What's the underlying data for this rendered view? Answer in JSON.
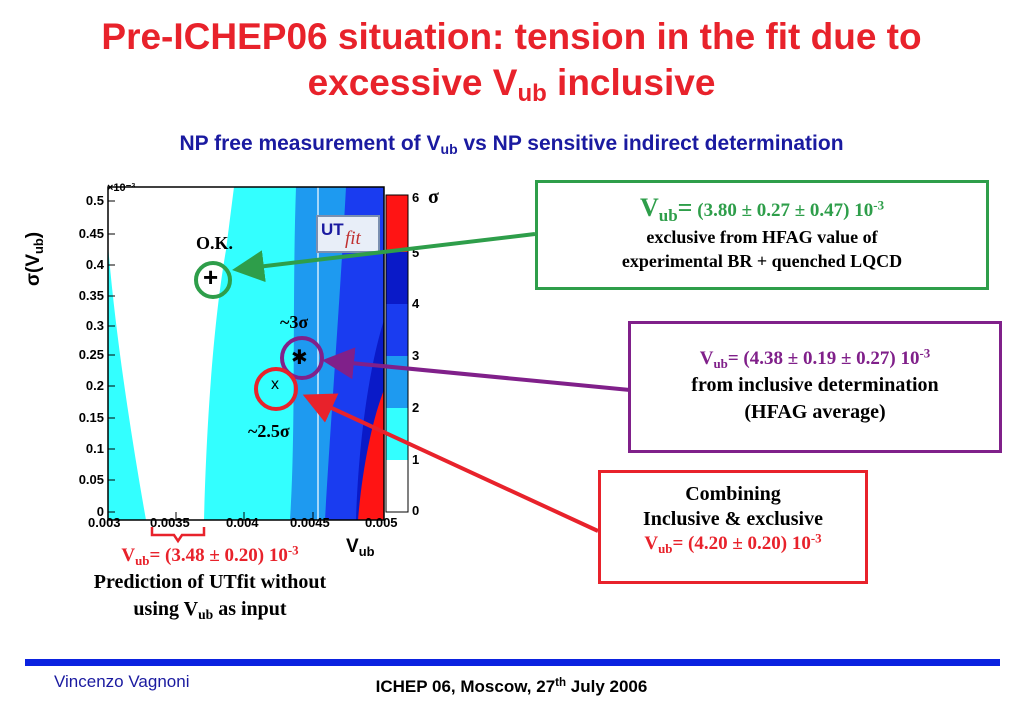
{
  "title": {
    "line1": "Pre-ICHEP06 situation: tension in the fit due to",
    "line2_pre": "excessive V",
    "line2_sub": "ub",
    "line2_post": " inclusive"
  },
  "subtitle": {
    "pre": "NP free measurement of V",
    "sub": "ub",
    "post": " vs NP sensitive indirect determination"
  },
  "plot": {
    "y_axis_label_pre": "σ(V",
    "y_axis_label_sub": "ub",
    "y_axis_label_post": ")",
    "y_exponent": "×10⁻³",
    "y_ticks": [
      "0.5",
      "0.45",
      "0.4",
      "0.35",
      "0.3",
      "0.25",
      "0.2",
      "0.15",
      "0.1",
      "0.05",
      "0"
    ],
    "x_ticks": [
      "0.003",
      "0.0035",
      "0.004",
      "0.0045",
      "0.005"
    ],
    "x_axis_label_pre": "V",
    "x_axis_label_sub": "ub",
    "colorbar_ticks": [
      "6",
      "5",
      "4",
      "3",
      "2",
      "1",
      "0"
    ],
    "colorbar_label": "σ",
    "colors": {
      "light_cyan": "#33ffff",
      "mid_blue": "#1e9af0",
      "blue": "#1a3cf0",
      "dark_blue": "#0a1ac8",
      "red": "#ff1414"
    },
    "logo_ut": "UT",
    "logo_fit": "fit",
    "ok_label": "O.K.",
    "plus_marker": "+",
    "three_sigma": "~3σ",
    "star_marker": "✱",
    "x_marker": "x",
    "two_five_sigma": "~2.5σ"
  },
  "box_green": {
    "v_pre": "V",
    "v_sub": "ub",
    "v_eq": "=",
    "value": " (3.80 ± 0.27 ± 0.47) 10",
    "exp": "-3",
    "line2": "exclusive from HFAG value of",
    "line3": "experimental BR + quenched LQCD",
    "color": "#2e9e4a"
  },
  "box_purple": {
    "v_pre": "V",
    "v_sub": "ub",
    "value": "= (4.38 ± 0.19 ± 0.27) 10",
    "exp": "-3",
    "line2": "from inclusive determination",
    "line3": "(HFAG average)",
    "color": "#80208a"
  },
  "box_red": {
    "line1": "Combining",
    "line2": "Inclusive & exclusive",
    "v_pre": "V",
    "v_sub": "ub",
    "value": "= (4.20 ± 0.20) 10",
    "exp": "-3",
    "color": "#e8222b"
  },
  "prediction": {
    "v_pre": "V",
    "v_sub": "ub",
    "value": "= (3.48 ± 0.20) 10",
    "exp": "-3",
    "line2": "Prediction of UTfit without",
    "line3_pre": "using V",
    "line3_sub": "ub",
    "line3_post": " as input"
  },
  "footer": {
    "author": "Vincenzo Vagnoni",
    "event_pre": "ICHEP 06, Moscow, 27",
    "event_sup": "th",
    "event_post": " July 2006"
  }
}
